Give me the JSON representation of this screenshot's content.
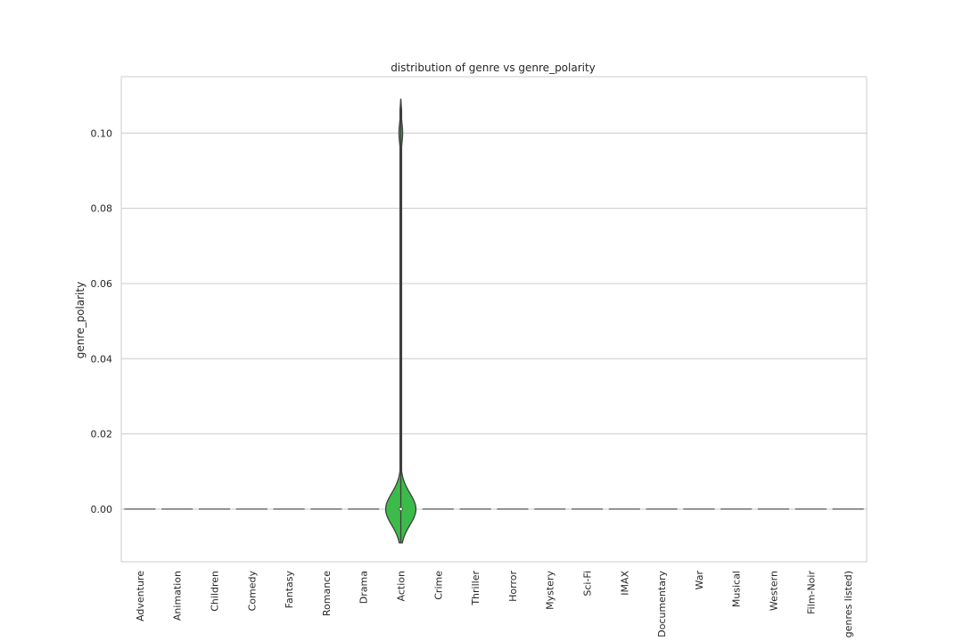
{
  "chart_data": {
    "type": "violin",
    "title": "distribution of genre vs genre_polarity",
    "xlabel": "",
    "ylabel": "genre_polarity",
    "ylim": [
      -0.014,
      0.115
    ],
    "yticks": [
      0.0,
      0.02,
      0.04,
      0.06,
      0.08,
      0.1
    ],
    "ytick_labels": [
      "0.00",
      "0.02",
      "0.04",
      "0.06",
      "0.08",
      "0.10"
    ],
    "grid": "horizontal",
    "categories": [
      "Adventure",
      "Animation",
      "Children",
      "Comedy",
      "Fantasy",
      "Romance",
      "Drama",
      "Action",
      "Crime",
      "Thriller",
      "Horror",
      "Mystery",
      "Sci-Fi",
      "IMAX",
      "Documentary",
      "War",
      "Musical",
      "Western",
      "Film-Noir",
      "genres listed)"
    ],
    "series": [
      {
        "values": [
          {
            "median": 0.0,
            "min": 0.0,
            "max": 0.0
          },
          {
            "median": 0.0,
            "min": 0.0,
            "max": 0.0
          },
          {
            "median": 0.0,
            "min": 0.0,
            "max": 0.0
          },
          {
            "median": 0.0,
            "min": 0.0,
            "max": 0.0
          },
          {
            "median": 0.0,
            "min": 0.0,
            "max": 0.0
          },
          {
            "median": 0.0,
            "min": 0.0,
            "max": 0.0
          },
          {
            "median": 0.0,
            "min": 0.0,
            "max": 0.0
          },
          {
            "median": 0.0,
            "min": -0.009,
            "max": 0.109,
            "secondary_mode": 0.1
          },
          {
            "median": 0.0,
            "min": 0.0,
            "max": 0.0
          },
          {
            "median": 0.0,
            "min": 0.0,
            "max": 0.0
          },
          {
            "median": 0.0,
            "min": 0.0,
            "max": 0.0
          },
          {
            "median": 0.0,
            "min": 0.0,
            "max": 0.0
          },
          {
            "median": 0.0,
            "min": 0.0,
            "max": 0.0
          },
          {
            "median": 0.0,
            "min": 0.0,
            "max": 0.0
          },
          {
            "median": 0.0,
            "min": 0.0,
            "max": 0.0
          },
          {
            "median": 0.0,
            "min": 0.0,
            "max": 0.0
          },
          {
            "median": 0.0,
            "min": 0.0,
            "max": 0.0
          },
          {
            "median": 0.0,
            "min": 0.0,
            "max": 0.0
          },
          {
            "median": 0.0,
            "min": 0.0,
            "max": 0.0
          },
          {
            "median": 0.0,
            "min": 0.0,
            "max": 0.0
          }
        ]
      }
    ],
    "colors": {
      "violin_fill": "#3dbb4a",
      "outline": "#3f3f3f",
      "grid": "#cccccc",
      "frame": "#cccccc"
    }
  }
}
